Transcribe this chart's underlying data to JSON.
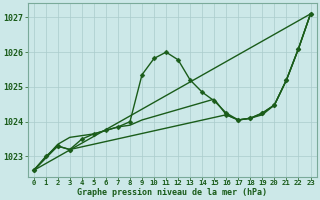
{
  "background_color": "#cce8e8",
  "grid_color": "#b8d8d8",
  "line_color": "#1a5c1a",
  "title": "Graphe pression niveau de la mer (hPa)",
  "ylabel_ticks": [
    1023,
    1024,
    1025,
    1026,
    1027
  ],
  "ylim": [
    1022.4,
    1027.4
  ],
  "xlim": [
    -0.5,
    23.5
  ],
  "series": [
    {
      "x": [
        0,
        1,
        2,
        3,
        4,
        5,
        6,
        7,
        8,
        9,
        10,
        11,
        12,
        13,
        14,
        15,
        16,
        17,
        18,
        19,
        20,
        21,
        22,
        23
      ],
      "y": [
        1022.6,
        1023.0,
        1023.3,
        1023.2,
        1023.5,
        1023.65,
        1023.75,
        1023.85,
        1024.0,
        1025.35,
        1025.82,
        1026.0,
        1025.78,
        1025.2,
        1024.85,
        1024.6,
        1024.25,
        1024.05,
        1024.1,
        1024.25,
        1024.48,
        1025.2,
        1026.1,
        1027.1
      ],
      "marker": "D",
      "markersize": 2.5,
      "linewidth": 1.0
    },
    {
      "x": [
        0,
        23
      ],
      "y": [
        1022.6,
        1027.1
      ],
      "marker": "None",
      "markersize": 0,
      "linewidth": 1.0
    },
    {
      "x": [
        0,
        2,
        3,
        4,
        5,
        6,
        7,
        8,
        9,
        10,
        11,
        12,
        13,
        14,
        15,
        16,
        17,
        18,
        19,
        20,
        21,
        22,
        23
      ],
      "y": [
        1022.6,
        1023.35,
        1023.55,
        1023.6,
        1023.65,
        1023.75,
        1023.85,
        1023.9,
        1024.05,
        1024.15,
        1024.25,
        1024.35,
        1024.45,
        1024.55,
        1024.65,
        1024.2,
        1024.05,
        1024.1,
        1024.2,
        1024.48,
        1025.2,
        1026.1,
        1027.1
      ],
      "marker": "None",
      "markersize": 0,
      "linewidth": 1.0
    },
    {
      "x": [
        0,
        2,
        3,
        16,
        17,
        18,
        19,
        20,
        21,
        22,
        23
      ],
      "y": [
        1022.6,
        1023.3,
        1023.2,
        1024.2,
        1024.05,
        1024.1,
        1024.25,
        1024.48,
        1025.2,
        1026.1,
        1027.1
      ],
      "marker": "D",
      "markersize": 2.5,
      "linewidth": 1.0
    }
  ]
}
